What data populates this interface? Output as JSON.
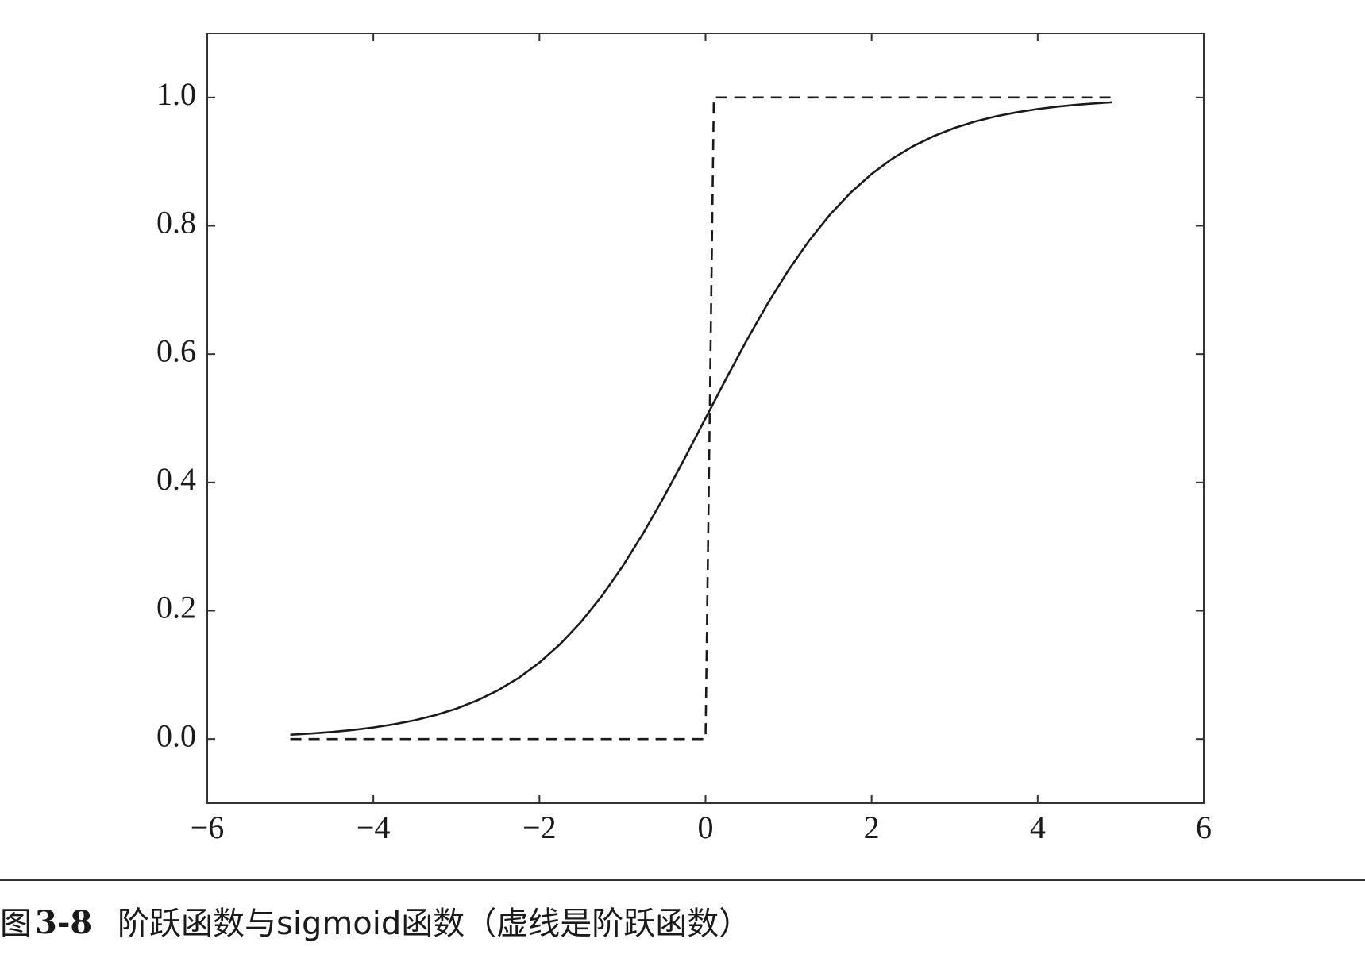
{
  "chart_data": {
    "type": "line",
    "xlim": [
      -6,
      6
    ],
    "ylim": [
      -0.1,
      1.1
    ],
    "xticks": [
      {
        "value": -6,
        "label": "−6"
      },
      {
        "value": -4,
        "label": "−4"
      },
      {
        "value": -2,
        "label": "−2"
      },
      {
        "value": 0,
        "label": "0"
      },
      {
        "value": 2,
        "label": "2"
      },
      {
        "value": 4,
        "label": "4"
      },
      {
        "value": 6,
        "label": "6"
      }
    ],
    "yticks": [
      {
        "value": 0,
        "label": "0.0"
      },
      {
        "value": 0.2,
        "label": "0.2"
      },
      {
        "value": 0.4,
        "label": "0.4"
      },
      {
        "value": 0.6,
        "label": "0.6"
      },
      {
        "value": 0.8,
        "label": "0.8"
      },
      {
        "value": 1,
        "label": "1.0"
      }
    ],
    "series": [
      {
        "color": "#1a1a1a",
        "style": "solid",
        "x": [
          -5,
          -4.75,
          -4.5,
          -4.25,
          -4,
          -3.75,
          -3.5,
          -3.25,
          -3,
          -2.75,
          -2.5,
          -2.25,
          -2,
          -1.75,
          -1.5,
          -1.25,
          -1,
          -0.75,
          -0.5,
          -0.25,
          0,
          0.25,
          0.5,
          0.75,
          1,
          1.25,
          1.5,
          1.75,
          2,
          2.25,
          2.5,
          2.75,
          3,
          3.25,
          3.5,
          3.75,
          4,
          4.25,
          4.5,
          4.75,
          4.9
        ],
        "values": [
          0.0067,
          0.0086,
          0.011,
          0.014,
          0.018,
          0.023,
          0.0293,
          0.0373,
          0.0474,
          0.0601,
          0.0759,
          0.0953,
          0.1192,
          0.148,
          0.1824,
          0.2227,
          0.2689,
          0.3208,
          0.3775,
          0.4378,
          0.5,
          0.5622,
          0.6225,
          0.6792,
          0.7311,
          0.7773,
          0.8176,
          0.852,
          0.8808,
          0.9047,
          0.9241,
          0.9399,
          0.9526,
          0.9627,
          0.9707,
          0.977,
          0.982,
          0.986,
          0.989,
          0.9914,
          0.9926
        ]
      },
      {
        "color": "#1a1a1a",
        "style": "dashed",
        "x": [
          -5,
          0,
          0.1,
          4.9
        ],
        "values": [
          0,
          0,
          1,
          1
        ]
      }
    ]
  },
  "caption": {
    "label": "图",
    "number": "3-8",
    "text": "阶跃函数与sigmoid函数（虚线是阶跃函数）"
  }
}
